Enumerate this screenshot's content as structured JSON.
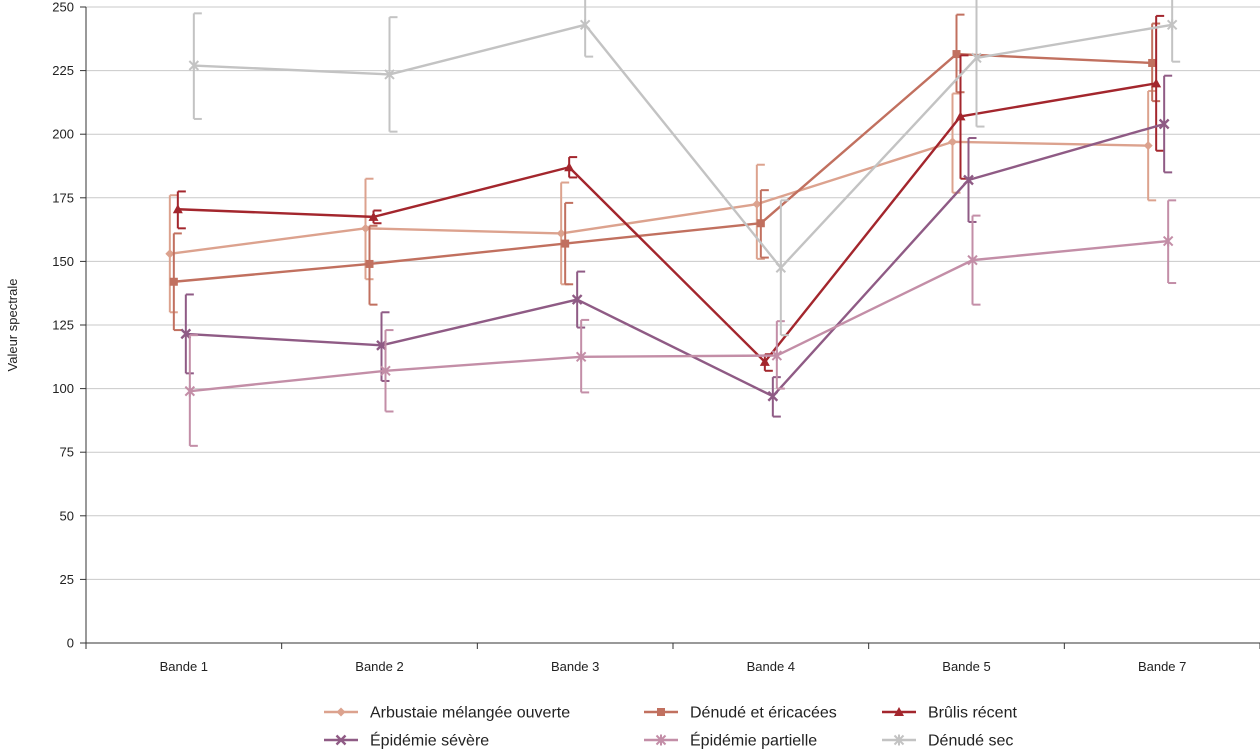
{
  "chart_data": {
    "type": "line",
    "title": "",
    "xlabel": "",
    "ylabel": "Valeur spectrale",
    "ylim": [
      0,
      250
    ],
    "yticks": [
      0,
      25,
      50,
      75,
      100,
      125,
      150,
      175,
      200,
      225,
      250
    ],
    "categories": [
      "Bande 1",
      "Bande 2",
      "Bande 3",
      "Bande 4",
      "Bande 5",
      "Bande 7"
    ],
    "grid": "horizontal",
    "legend_position": "bottom",
    "series": [
      {
        "name": "Arbustaie mélangée ouverte",
        "color": "#dca28e",
        "marker": "diamond",
        "values": [
          153,
          163,
          161,
          172.5,
          197,
          195.5
        ],
        "err_low": [
          130,
          143,
          141,
          151,
          177,
          174
        ],
        "err_high": [
          176,
          182.5,
          181,
          188,
          216,
          217
        ]
      },
      {
        "name": "Dénudé et éricacées",
        "color": "#c1705f",
        "marker": "square",
        "values": [
          142,
          149,
          157,
          165,
          231.5,
          228
        ],
        "err_low": [
          123,
          133,
          141,
          151.5,
          216.5,
          213
        ],
        "err_high": [
          161,
          164,
          173,
          178,
          247,
          243.5
        ]
      },
      {
        "name": "Brûlis récent",
        "color": "#a3262d",
        "marker": "triangle",
        "values": [
          170.5,
          167.5,
          187,
          110.5,
          207,
          220
        ],
        "err_low": [
          163,
          165,
          183,
          107,
          182.5,
          193.5
        ],
        "err_high": [
          177.5,
          170,
          191,
          113.5,
          231,
          246.5
        ]
      },
      {
        "name": "Épidémie sévère",
        "color": "#8f5b85",
        "marker": "x",
        "values": [
          121.5,
          117,
          135,
          97,
          182,
          204
        ],
        "err_low": [
          106,
          103,
          124,
          89,
          165.5,
          185
        ],
        "err_high": [
          137,
          130,
          146,
          104.5,
          198.5,
          223
        ]
      },
      {
        "name": "Épidémie partielle",
        "color": "#c38ea7",
        "marker": "star",
        "values": [
          99,
          107,
          112.5,
          113,
          150.5,
          158
        ],
        "err_low": [
          77.5,
          91,
          98.5,
          100,
          133,
          141.5
        ],
        "err_high": [
          121,
          123,
          127,
          126.5,
          168,
          174
        ]
      },
      {
        "name": "Dénudé sec",
        "color": "#c3c3c3",
        "marker": "star",
        "values": [
          227,
          223.5,
          243,
          147.5,
          230,
          243
        ],
        "err_low": [
          206,
          201,
          230.5,
          121,
          203,
          228.5
        ],
        "err_high": [
          247.5,
          246,
          255,
          174,
          257,
          258
        ]
      }
    ]
  }
}
